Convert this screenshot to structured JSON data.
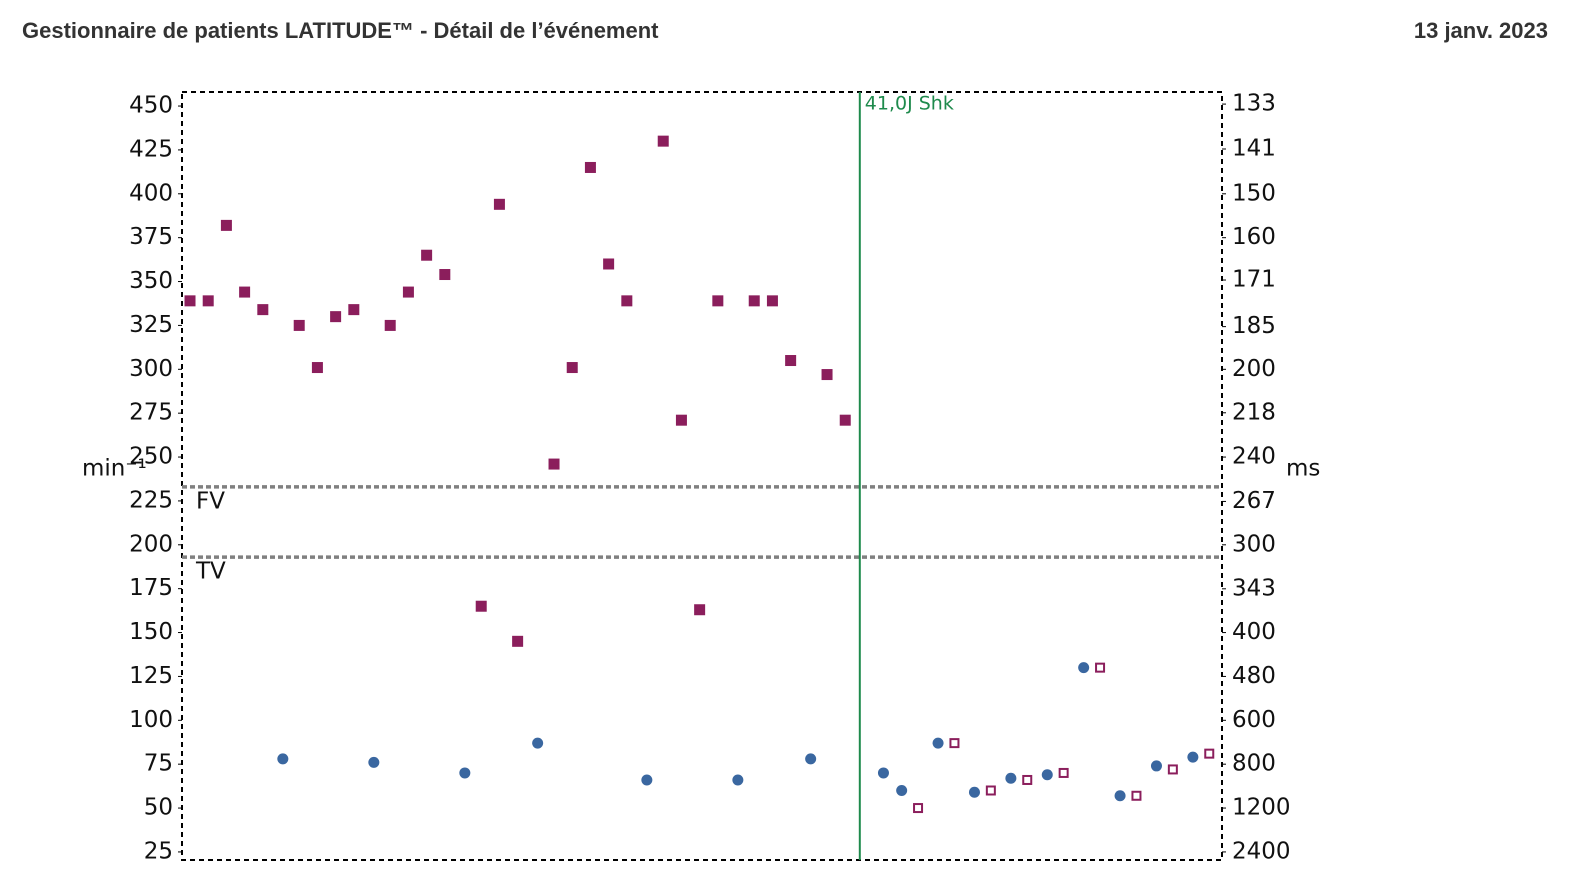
{
  "chart_data": {
    "type": "scatter",
    "title": "Gestionnaire de patients LATITUDE™ - Détail de l’événement",
    "date": "13 janv. 2023",
    "ylabel": "min⁻¹",
    "y2label": "ms",
    "xlim": [
      0.56,
      57.7
    ],
    "ylim": [
      20.4,
      458
    ],
    "yticks": [
      25,
      50,
      75,
      100,
      125,
      150,
      175,
      200,
      225,
      250,
      275,
      300,
      325,
      350,
      375,
      400,
      425,
      450
    ],
    "y2scale": "reciprocal",
    "y2lim": [
      2941,
      131
    ],
    "y2ticks": [
      2400,
      1200,
      800,
      600,
      480,
      400,
      343,
      300,
      267,
      240,
      218,
      200,
      185,
      171,
      160,
      150,
      141,
      133
    ],
    "series": [
      {
        "marker": "filled-square",
        "color": "#8b1e5c",
        "x": [
          1,
          2,
          3,
          4,
          5,
          7,
          8,
          9,
          10,
          12,
          13,
          14,
          15,
          17,
          18,
          19,
          21,
          22,
          23,
          24,
          25,
          27,
          28,
          29,
          30,
          32,
          33,
          34,
          36,
          37
        ],
        "values": [
          339,
          339,
          382,
          344,
          334,
          325,
          301,
          330,
          334,
          325,
          344,
          365,
          354,
          165,
          394,
          145,
          246,
          301,
          415,
          360,
          339,
          430,
          271,
          163,
          339,
          339,
          339,
          305,
          297,
          271
        ]
      },
      {
        "marker": "circle",
        "color": "#3a67a0",
        "x": [
          6.1,
          11.1,
          16.1,
          20.1,
          26.1,
          31.1,
          35.1,
          39.1,
          40.1,
          42.1,
          44.1,
          46.1,
          48.1,
          50.1,
          52.1,
          54.1,
          56.1
        ],
        "values": [
          78,
          76,
          70,
          87,
          66,
          66,
          78,
          70,
          60,
          87,
          59,
          67,
          69,
          130,
          57,
          74,
          79
        ]
      },
      {
        "marker": "open-square",
        "color": "#8b1e5c",
        "x": [
          41,
          43,
          45,
          47,
          49,
          51,
          53,
          55,
          57
        ],
        "values": [
          50,
          87,
          60,
          66,
          70,
          130,
          57,
          72,
          81
        ]
      }
    ],
    "thresholds": [
      {
        "label": "FV",
        "value": 233
      },
      {
        "label": "TV",
        "value": 193
      }
    ],
    "event": {
      "label": "41,0J Shk",
      "x": 37.8,
      "color": "#1e8a4c"
    }
  }
}
